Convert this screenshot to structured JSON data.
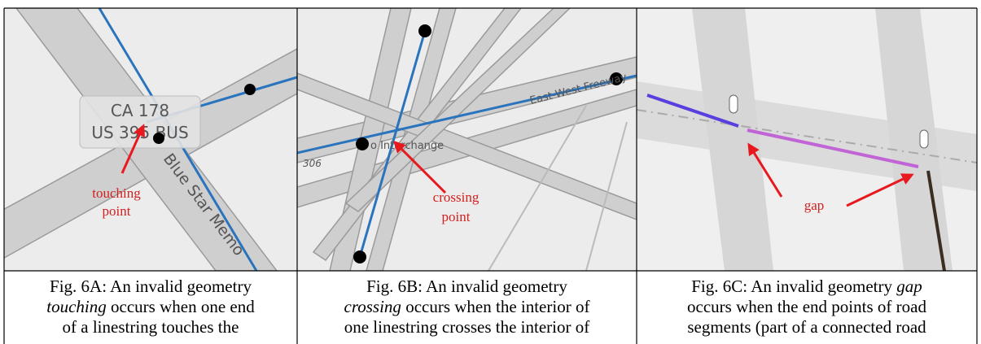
{
  "panels": [
    {
      "map_labels": [
        "CA 178",
        "US 395 BUS",
        "Blue Star Memo"
      ],
      "annotation": [
        "touching",
        "point"
      ],
      "caption": [
        [
          {
            "text": "Fig. 6A: An invalid geometry"
          }
        ],
        [
          {
            "text": "touching",
            "italic": true
          },
          {
            "text": " occurs when one end"
          }
        ],
        [
          {
            "text": "of a linestring touches the"
          }
        ]
      ]
    },
    {
      "map_labels": [
        "East-West Freeway",
        "o Interchange",
        "306"
      ],
      "annotation": [
        "crossing",
        "point"
      ],
      "caption": [
        [
          {
            "text": "Fig. 6B: An invalid geometry"
          }
        ],
        [
          {
            "text": "crossing",
            "italic": true
          },
          {
            "text": " occurs when the interior of"
          }
        ],
        [
          {
            "text": "one linestring crosses the interior of"
          }
        ]
      ]
    },
    {
      "annotation": [
        "gap"
      ],
      "caption": [
        [
          {
            "text": "Fig. 6C: An invalid geometry "
          },
          {
            "text": "gap",
            "italic": true
          }
        ],
        [
          {
            "text": "occurs when the end points of road"
          }
        ],
        [
          {
            "text": "segments (part of a connected road"
          }
        ]
      ]
    }
  ]
}
